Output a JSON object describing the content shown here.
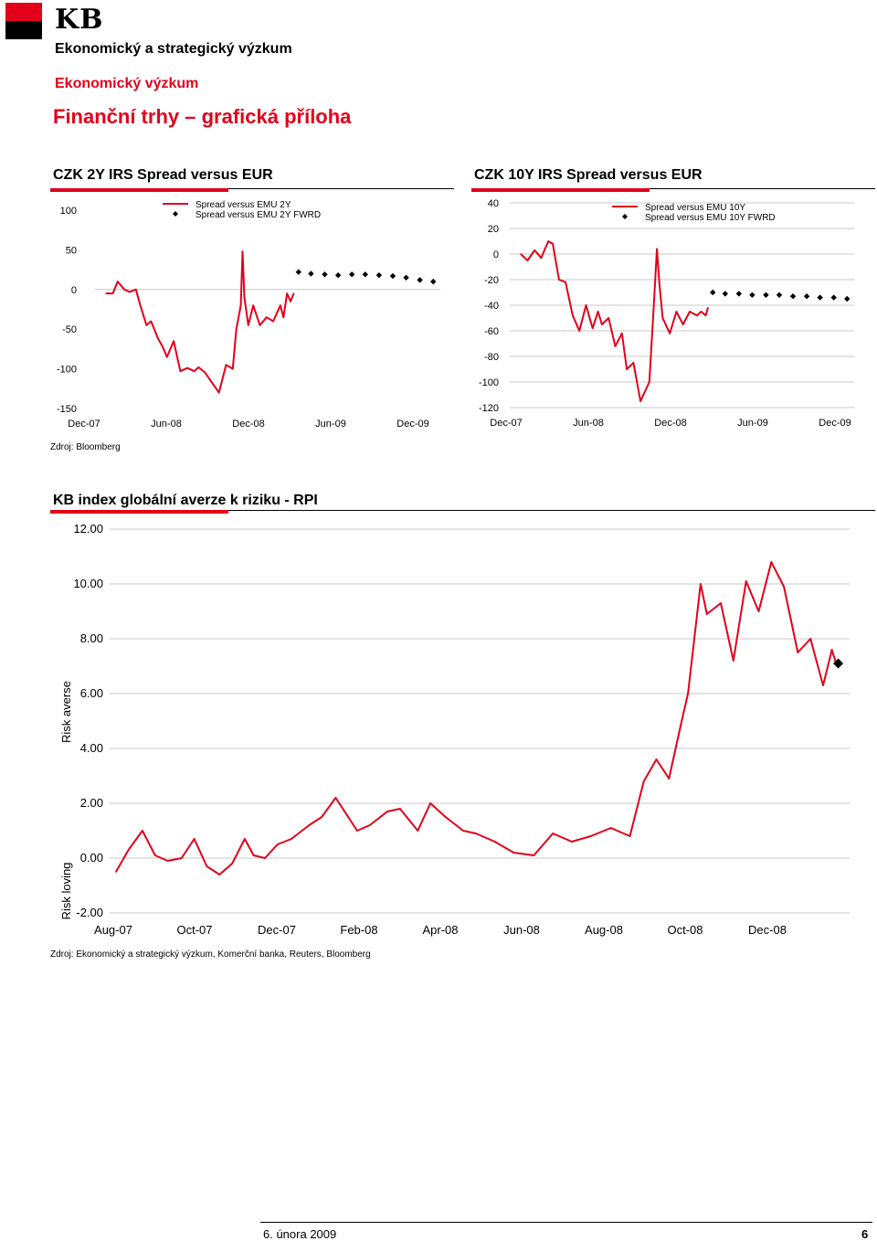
{
  "header": {
    "logo_text": "KB",
    "department": "Ekonomický a strategický výzkum",
    "subdepartment": "Ekonomický výzkum",
    "page_title": "Finanční trhy – grafická příloha",
    "brand_color": "#e2001a"
  },
  "footer": {
    "date": "6. února 2009",
    "page_number": "6"
  },
  "sources": {
    "top": "Zdroj: Bloomberg",
    "bottom": "Zdroj: Ekonomický a strategický výzkum, Komerční banka, Reuters, Bloomberg"
  },
  "chart_data": [
    {
      "type": "line",
      "title": "CZK 2Y IRS Spread versus EUR",
      "xlabel": "",
      "ylabel": "",
      "ylim": [
        -150,
        100
      ],
      "yticks": [
        "100",
        "50",
        "0",
        "-50",
        "-100",
        "-150"
      ],
      "xticks": [
        "Dec-07",
        "Jun-08",
        "Dec-08",
        "Jun-09",
        "Dec-09"
      ],
      "grid": "zero line",
      "legend_position": "top-right",
      "series": [
        {
          "name": "Spread versus EMU 2Y",
          "style": "line",
          "color": "#e2001a",
          "x": [
            "2007-12-10",
            "2007-12-25",
            "2008-01-05",
            "2008-01-20",
            "2008-02-01",
            "2008-02-15",
            "2008-02-25",
            "2008-03-10",
            "2008-03-20",
            "2008-04-05",
            "2008-04-15",
            "2008-04-25",
            "2008-05-10",
            "2008-05-25",
            "2008-06-10",
            "2008-06-25",
            "2008-07-05",
            "2008-07-20",
            "2008-08-05",
            "2008-08-20",
            "2008-09-05",
            "2008-09-20",
            "2008-09-28",
            "2008-10-08",
            "2008-10-12",
            "2008-10-16",
            "2008-10-25",
            "2008-11-05",
            "2008-11-20",
            "2008-12-05",
            "2008-12-20",
            "2009-01-05",
            "2009-01-12",
            "2009-01-20",
            "2009-01-28",
            "2009-02-04"
          ],
          "values": [
            -5,
            -5,
            10,
            0,
            -3,
            0,
            -20,
            -45,
            -40,
            -62,
            -72,
            -85,
            -65,
            -103,
            -99,
            -103,
            -98,
            -105,
            -118,
            -130,
            -95,
            -100,
            -50,
            -20,
            48,
            -10,
            -45,
            -20,
            -45,
            -35,
            -40,
            -20,
            -35,
            -5,
            -15,
            -5
          ]
        },
        {
          "name": "Spread versus EMU 2Y FWRD",
          "style": "markers",
          "marker": "diamond",
          "color": "#000000",
          "x": [
            "2009-02-15",
            "2009-03-15",
            "2009-04-15",
            "2009-05-15",
            "2009-06-15",
            "2009-07-15",
            "2009-08-15",
            "2009-09-15",
            "2009-10-15",
            "2009-11-15",
            "2009-12-15"
          ],
          "values": [
            22,
            20,
            19,
            18,
            19,
            19,
            18,
            17,
            15,
            12,
            10
          ]
        }
      ]
    },
    {
      "type": "line",
      "title": "CZK 10Y IRS Spread versus EUR",
      "xlabel": "",
      "ylabel": "",
      "ylim": [
        -120,
        40
      ],
      "yticks": [
        "40",
        "20",
        "0",
        "-20",
        "-40",
        "-60",
        "-80",
        "-100",
        "-120"
      ],
      "xticks": [
        "Dec-07",
        "Jun-08",
        "Dec-08",
        "Jun-09",
        "Dec-09"
      ],
      "grid": "horizontal",
      "legend_position": "top-right",
      "series": [
        {
          "name": "Spread versus EMU 10Y",
          "style": "line",
          "color": "#e2001a",
          "x": [
            "2007-12-10",
            "2007-12-25",
            "2008-01-10",
            "2008-01-25",
            "2008-02-10",
            "2008-02-20",
            "2008-03-05",
            "2008-03-20",
            "2008-04-05",
            "2008-04-20",
            "2008-05-05",
            "2008-05-20",
            "2008-06-01",
            "2008-06-10",
            "2008-06-25",
            "2008-07-10",
            "2008-07-25",
            "2008-08-05",
            "2008-08-20",
            "2008-09-05",
            "2008-09-25",
            "2008-10-05",
            "2008-10-12",
            "2008-10-18",
            "2008-10-25",
            "2008-11-10",
            "2008-11-25",
            "2008-12-10",
            "2008-12-25",
            "2009-01-10",
            "2009-01-20",
            "2009-01-30",
            "2009-02-04"
          ],
          "values": [
            0,
            -5,
            3,
            -3,
            10,
            8,
            -20,
            -22,
            -48,
            -60,
            -40,
            -58,
            -45,
            -55,
            -50,
            -72,
            -62,
            -90,
            -85,
            -115,
            -100,
            -40,
            4,
            -25,
            -50,
            -62,
            -45,
            -55,
            -45,
            -48,
            -45,
            -48,
            -42
          ]
        },
        {
          "name": "Spread versus EMU 10Y FWRD",
          "style": "markers",
          "marker": "diamond",
          "color": "#000000",
          "x": [
            "2009-02-15",
            "2009-03-15",
            "2009-04-15",
            "2009-05-15",
            "2009-06-15",
            "2009-07-15",
            "2009-08-15",
            "2009-09-15",
            "2009-10-15",
            "2009-11-15",
            "2009-12-15"
          ],
          "values": [
            -30,
            -31,
            -31,
            -32,
            -32,
            -32,
            -33,
            -33,
            -34,
            -34,
            -35
          ]
        }
      ]
    },
    {
      "type": "line",
      "title": "KB index globální averze k riziku - RPI",
      "xlabel": "",
      "ylabel": "Risk averse",
      "ylabel_secondary": "Risk loving",
      "ylim": [
        -2,
        12
      ],
      "yticks": [
        "12.00",
        "10.00",
        "8.00",
        "6.00",
        "4.00",
        "2.00",
        "0.00",
        "-2.00"
      ],
      "xticks": [
        "Aug-07",
        "Oct-07",
        "Dec-07",
        "Feb-08",
        "Apr-08",
        "Jun-08",
        "Aug-08",
        "Oct-08",
        "Dec-08"
      ],
      "grid": "horizontal",
      "series": [
        {
          "name": "",
          "style": "line",
          "color": "#e2001a",
          "x": [
            "2007-07-15",
            "2007-07-25",
            "2007-08-05",
            "2007-08-15",
            "2007-08-25",
            "2007-09-05",
            "2007-09-15",
            "2007-09-25",
            "2007-10-05",
            "2007-10-15",
            "2007-10-25",
            "2007-11-01",
            "2007-11-10",
            "2007-11-20",
            "2007-12-01",
            "2007-12-15",
            "2007-12-25",
            "2008-01-05",
            "2008-01-15",
            "2008-01-22",
            "2008-02-01",
            "2008-02-15",
            "2008-02-25",
            "2008-03-10",
            "2008-03-20",
            "2008-04-01",
            "2008-04-15",
            "2008-04-25",
            "2008-05-10",
            "2008-05-25",
            "2008-06-10",
            "2008-06-25",
            "2008-07-10",
            "2008-07-25",
            "2008-08-10",
            "2008-08-25",
            "2008-09-05",
            "2008-09-15",
            "2008-09-25",
            "2008-10-05",
            "2008-10-10",
            "2008-10-20",
            "2008-10-25",
            "2008-11-05",
            "2008-11-15",
            "2008-11-25",
            "2008-12-05",
            "2008-12-15",
            "2008-12-25",
            "2009-01-05",
            "2009-01-15",
            "2009-01-25",
            "2009-02-01",
            "2009-02-05"
          ],
          "values": [
            -0.5,
            0.3,
            1.0,
            0.1,
            -0.1,
            0.0,
            0.7,
            -0.3,
            -0.6,
            -0.2,
            0.7,
            0.1,
            0.0,
            0.5,
            0.7,
            1.2,
            1.5,
            2.2,
            1.5,
            1.0,
            1.2,
            1.7,
            1.8,
            1.0,
            2.0,
            1.5,
            1.0,
            0.9,
            0.6,
            0.2,
            0.1,
            0.9,
            0.6,
            0.8,
            1.1,
            0.8,
            2.8,
            3.6,
            2.9,
            5.0,
            6.0,
            10.0,
            8.9,
            9.3,
            7.2,
            10.1,
            9.0,
            10.8,
            9.9,
            7.5,
            8.0,
            6.3,
            7.6,
            7.0
          ]
        },
        {
          "name": "",
          "style": "markers",
          "marker": "diamond",
          "color": "#000000",
          "x": [
            "2009-02-06"
          ],
          "values": [
            7.1
          ]
        }
      ]
    }
  ]
}
